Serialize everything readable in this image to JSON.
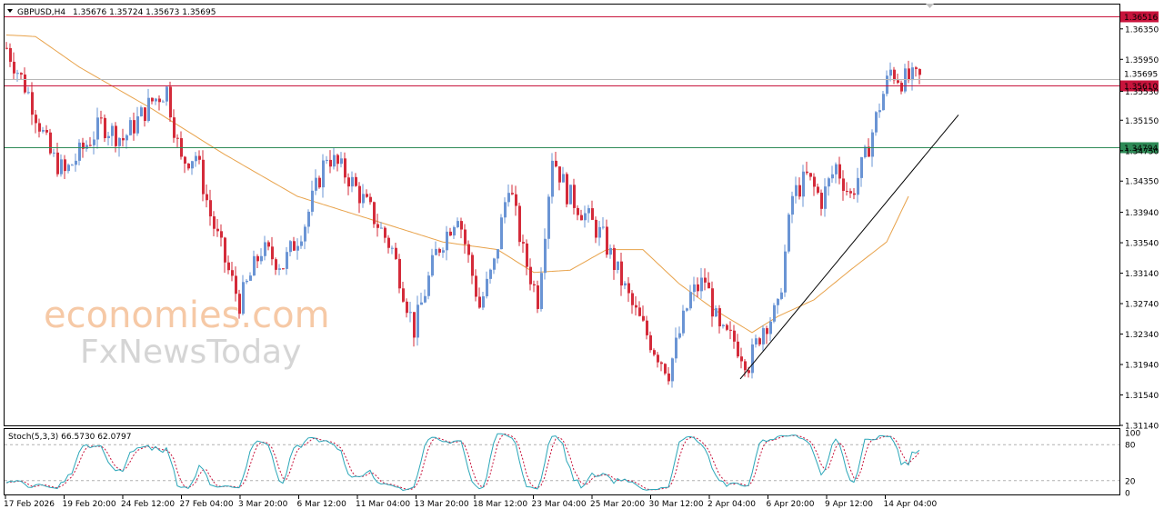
{
  "header": {
    "symbol": "GBPUSD,H4",
    "ohlc": "1.35676 1.35724 1.35673 1.35695"
  },
  "indicator": {
    "label": "Stoch(5,3,3) 66.5730 62.0797",
    "main_value": 66.573,
    "signal_value": 62.0797,
    "levels": [
      80,
      20
    ],
    "axis_labels": [
      "100",
      "80",
      "20",
      "0"
    ]
  },
  "watermark": {
    "line1": "economies.com",
    "line2": "FxNewsToday"
  },
  "colors": {
    "bull": "#6a94d4",
    "bear": "#d42b3a",
    "ma": "#e8a24a",
    "resistance": "#c8143c",
    "support": "#2e8b57",
    "trendline": "#000000",
    "stoch_main": "#2aa6b8",
    "stoch_signal": "#c8143c"
  },
  "chart_data": {
    "type": "candlestick",
    "symbol": "GBPUSD",
    "timeframe": "H4",
    "ylim": [
      1.3114,
      1.3667
    ],
    "y_ticks": [
      "1.36350",
      "1.35950",
      "1.35530",
      "1.35150",
      "1.34750",
      "1.34350",
      "1.33940",
      "1.33540",
      "1.33140",
      "1.32740",
      "1.32340",
      "1.31940",
      "1.31540",
      "1.31140"
    ],
    "x_ticks": [
      "17 Feb 2026",
      "19 Feb 20:00",
      "24 Feb 12:00",
      "27 Feb 04:00",
      "3 Mar 20:00",
      "6 Mar 12:00",
      "11 Mar 04:00",
      "13 Mar 20:00",
      "18 Mar 12:00",
      "23 Mar 04:00",
      "25 Mar 20:00",
      "30 Mar 12:00",
      "2 Apr 04:00",
      "6 Apr 20:00",
      "9 Apr 12:00",
      "14 Apr 04:00"
    ],
    "horizontal_levels": [
      {
        "label": "1.36516",
        "value": 1.36516,
        "color": "#c8143c"
      },
      {
        "label": "1.35610",
        "value": 1.3561,
        "color": "#c8143c"
      },
      {
        "label": "1.34794",
        "value": 1.34794,
        "color": "#2e8b57"
      }
    ],
    "current_price": {
      "label": "1.35695",
      "value": 1.35695
    },
    "trendline": {
      "from": {
        "bar": 202,
        "price": 1.3175
      },
      "to": {
        "bar": 262,
        "price": 1.3522
      }
    },
    "ma_anchors": [
      [
        0,
        1.3627
      ],
      [
        8,
        1.3625
      ],
      [
        20,
        1.3585
      ],
      [
        40,
        1.353
      ],
      [
        60,
        1.347
      ],
      [
        80,
        1.3415
      ],
      [
        100,
        1.3385
      ],
      [
        120,
        1.3355
      ],
      [
        135,
        1.3345
      ],
      [
        145,
        1.3315
      ],
      [
        155,
        1.3318
      ],
      [
        165,
        1.3345
      ],
      [
        175,
        1.3345
      ],
      [
        185,
        1.33
      ],
      [
        195,
        1.3265
      ],
      [
        205,
        1.3236
      ],
      [
        212,
        1.3257
      ],
      [
        222,
        1.3279
      ],
      [
        232,
        1.3318
      ],
      [
        242,
        1.3355
      ],
      [
        248,
        1.3415
      ]
    ],
    "price_path": [
      [
        0,
        1.361
      ],
      [
        6,
        1.355
      ],
      [
        12,
        1.347
      ],
      [
        16,
        1.3445
      ],
      [
        26,
        1.351
      ],
      [
        32,
        1.349
      ],
      [
        40,
        1.354
      ],
      [
        44,
        1.3555
      ],
      [
        48,
        1.346
      ],
      [
        52,
        1.347
      ],
      [
        56,
        1.339
      ],
      [
        60,
        1.333
      ],
      [
        64,
        1.3275
      ],
      [
        70,
        1.3345
      ],
      [
        76,
        1.3325
      ],
      [
        82,
        1.338
      ],
      [
        88,
        1.347
      ],
      [
        94,
        1.344
      ],
      [
        100,
        1.3395
      ],
      [
        106,
        1.3345
      ],
      [
        112,
        1.324
      ],
      [
        118,
        1.334
      ],
      [
        124,
        1.3395
      ],
      [
        130,
        1.327
      ],
      [
        134,
        1.3325
      ],
      [
        138,
        1.3435
      ],
      [
        142,
        1.334
      ],
      [
        146,
        1.328
      ],
      [
        150,
        1.347
      ],
      [
        154,
        1.342
      ],
      [
        160,
        1.3385
      ],
      [
        164,
        1.336
      ],
      [
        168,
        1.3315
      ],
      [
        172,
        1.327
      ],
      [
        178,
        1.3215
      ],
      [
        182,
        1.3185
      ],
      [
        188,
        1.3285
      ],
      [
        192,
        1.3305
      ],
      [
        196,
        1.3235
      ],
      [
        200,
        1.3225
      ],
      [
        204,
        1.3195
      ],
      [
        208,
        1.3245
      ],
      [
        212,
        1.3265
      ],
      [
        216,
        1.3415
      ],
      [
        220,
        1.344
      ],
      [
        224,
        1.341
      ],
      [
        228,
        1.3455
      ],
      [
        232,
        1.3415
      ],
      [
        236,
        1.3465
      ],
      [
        240,
        1.3535
      ],
      [
        243,
        1.358
      ],
      [
        246,
        1.3568
      ],
      [
        250,
        1.3569
      ]
    ]
  }
}
